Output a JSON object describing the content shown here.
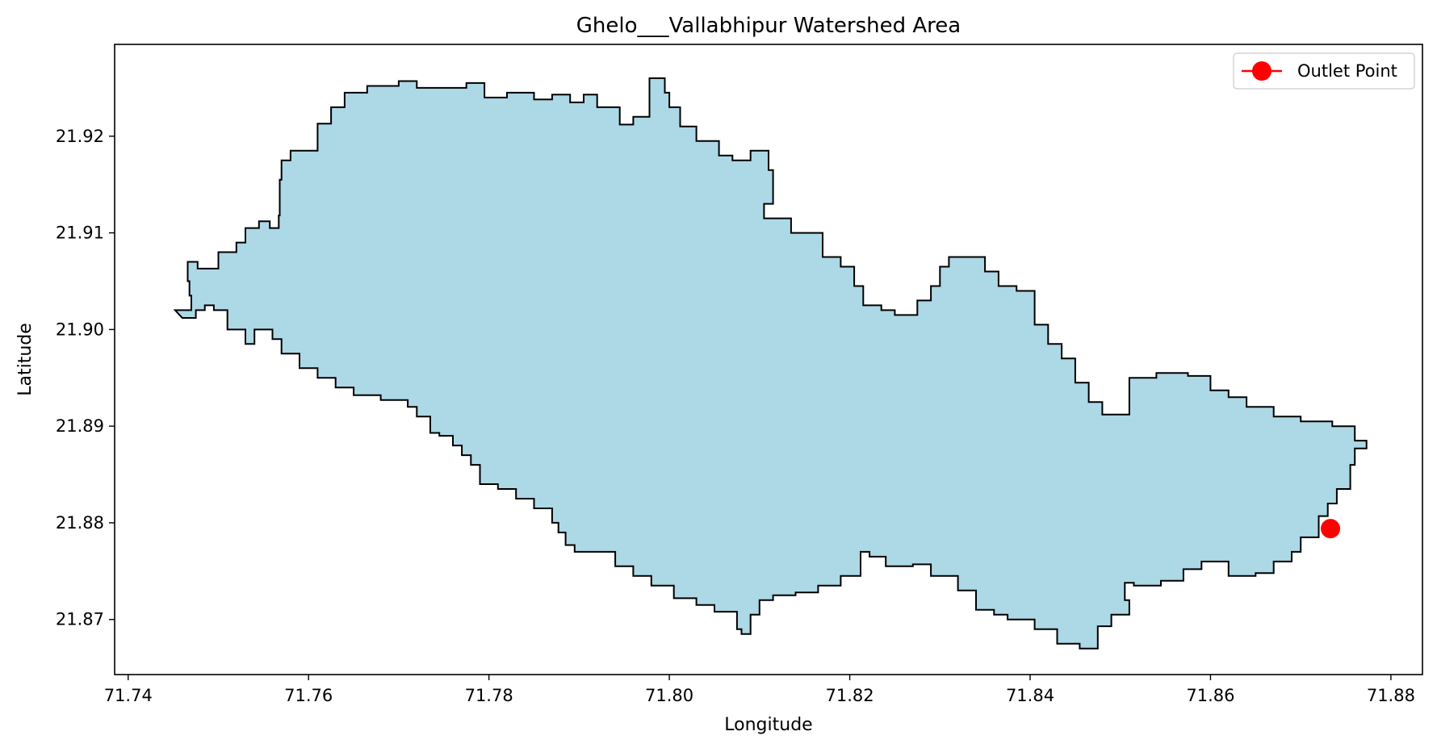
{
  "chart_data": {
    "type": "area",
    "title": "Ghelo___Vallabhipur Watershed Area",
    "xlabel": "Longitude",
    "ylabel": "Latitude",
    "xlim": [
      71.7385,
      71.8835
    ],
    "ylim": [
      21.8643,
      21.9295
    ],
    "x_ticks": [
      "71.74",
      "71.76",
      "71.78",
      "71.80",
      "71.82",
      "71.84",
      "71.86",
      "71.88"
    ],
    "y_ticks": [
      "21.87",
      "21.88",
      "21.89",
      "21.90",
      "21.91",
      "21.92"
    ],
    "grid": false,
    "legend_position": "top-right",
    "series": [
      {
        "kind": "polygon",
        "fill_color": "#add8e6",
        "edge_color": "#000000",
        "points": [
          [
            71.7452,
            21.902
          ],
          [
            71.747,
            21.9035
          ],
          [
            71.7468,
            21.905
          ],
          [
            71.7466,
            21.907
          ],
          [
            71.7475,
            21.907
          ],
          [
            71.7477,
            21.9063
          ],
          [
            71.75,
            21.9063
          ],
          [
            71.75,
            21.908
          ],
          [
            71.751,
            21.908
          ],
          [
            71.752,
            21.909
          ],
          [
            71.753,
            21.9105
          ],
          [
            71.7545,
            21.9112
          ],
          [
            71.7557,
            21.9105
          ],
          [
            71.7567,
            21.9118
          ],
          [
            71.7568,
            21.9155
          ],
          [
            71.757,
            21.9175
          ],
          [
            71.758,
            21.9185
          ],
          [
            71.7597,
            21.9185
          ],
          [
            71.761,
            21.9213
          ],
          [
            71.7625,
            21.923
          ],
          [
            71.764,
            21.9245
          ],
          [
            71.7665,
            21.9252
          ],
          [
            71.77,
            21.9257
          ],
          [
            71.772,
            21.925
          ],
          [
            71.776,
            21.925
          ],
          [
            71.7775,
            21.9255
          ],
          [
            71.7795,
            21.924
          ],
          [
            71.782,
            21.9245
          ],
          [
            71.785,
            21.9238
          ],
          [
            71.787,
            21.9243
          ],
          [
            71.789,
            21.9235
          ],
          [
            71.7905,
            21.9243
          ],
          [
            71.792,
            21.923
          ],
          [
            71.7945,
            21.9212
          ],
          [
            71.796,
            21.922
          ],
          [
            71.7978,
            21.926
          ],
          [
            71.7995,
            21.9245
          ],
          [
            71.8,
            21.923
          ],
          [
            71.8012,
            21.921
          ],
          [
            71.803,
            21.9195
          ],
          [
            71.8055,
            21.918
          ],
          [
            71.807,
            21.9175
          ],
          [
            71.809,
            21.9185
          ],
          [
            71.811,
            21.9165
          ],
          [
            71.8115,
            21.913
          ],
          [
            71.8105,
            21.9115
          ],
          [
            71.8135,
            21.91
          ],
          [
            71.816,
            21.91
          ],
          [
            71.817,
            21.9075
          ],
          [
            71.819,
            21.9065
          ],
          [
            71.8205,
            21.9045
          ],
          [
            71.8215,
            21.9025
          ],
          [
            71.8235,
            21.902
          ],
          [
            71.825,
            21.9015
          ],
          [
            71.8275,
            21.903
          ],
          [
            71.829,
            21.9045
          ],
          [
            71.83,
            21.9065
          ],
          [
            71.831,
            21.9075
          ],
          [
            71.834,
            21.9075
          ],
          [
            71.835,
            21.906
          ],
          [
            71.8365,
            21.9045
          ],
          [
            71.8385,
            21.904
          ],
          [
            71.8405,
            21.903
          ],
          [
            71.8405,
            21.9005
          ],
          [
            71.842,
            21.8985
          ],
          [
            71.8435,
            21.897
          ],
          [
            71.845,
            21.8945
          ],
          [
            71.8465,
            21.8925
          ],
          [
            71.848,
            21.8912
          ],
          [
            71.85,
            21.8912
          ],
          [
            71.851,
            21.895
          ],
          [
            71.854,
            21.8955
          ],
          [
            71.8575,
            21.8952
          ],
          [
            71.86,
            21.8937
          ],
          [
            71.862,
            21.893
          ],
          [
            71.864,
            21.892
          ],
          [
            71.867,
            21.891
          ],
          [
            71.87,
            21.8905
          ],
          [
            71.8735,
            21.89
          ],
          [
            71.876,
            21.8885
          ],
          [
            71.8773,
            21.8877
          ],
          [
            71.876,
            21.886
          ],
          [
            71.8755,
            21.8835
          ],
          [
            71.874,
            21.882
          ],
          [
            71.873,
            21.8807
          ],
          [
            71.872,
            21.8785
          ],
          [
            71.87,
            21.877
          ],
          [
            71.869,
            21.876
          ],
          [
            71.867,
            21.8748
          ],
          [
            71.865,
            21.8745
          ],
          [
            71.862,
            21.876
          ],
          [
            71.859,
            21.8752
          ],
          [
            71.857,
            21.874
          ],
          [
            71.8545,
            21.8735
          ],
          [
            71.8515,
            21.8738
          ],
          [
            71.8505,
            21.872
          ],
          [
            71.851,
            21.8705
          ],
          [
            71.849,
            21.8693
          ],
          [
            71.8475,
            21.867
          ],
          [
            71.8455,
            21.8675
          ],
          [
            71.843,
            21.869
          ],
          [
            71.8405,
            21.87
          ],
          [
            71.8375,
            21.8705
          ],
          [
            71.836,
            21.871
          ],
          [
            71.834,
            21.873
          ],
          [
            71.832,
            21.8745
          ],
          [
            71.829,
            21.8757
          ],
          [
            71.827,
            21.8755
          ],
          [
            71.824,
            21.8765
          ],
          [
            71.8222,
            21.877
          ],
          [
            71.8212,
            21.8745
          ],
          [
            71.819,
            21.8735
          ],
          [
            71.8165,
            21.8728
          ],
          [
            71.814,
            21.8725
          ],
          [
            71.8115,
            21.872
          ],
          [
            71.81,
            21.8705
          ],
          [
            71.809,
            21.8685
          ],
          [
            71.808,
            21.869
          ],
          [
            71.8075,
            21.8708
          ],
          [
            71.805,
            21.8715
          ],
          [
            71.803,
            21.8722
          ],
          [
            71.8005,
            21.8735
          ],
          [
            71.798,
            21.8745
          ],
          [
            71.796,
            21.8755
          ],
          [
            71.794,
            21.877
          ],
          [
            71.791,
            21.877
          ],
          [
            71.7895,
            21.8777
          ],
          [
            71.7885,
            21.879
          ],
          [
            71.7877,
            21.88
          ],
          [
            71.787,
            21.8815
          ],
          [
            71.785,
            21.8825
          ],
          [
            71.783,
            21.8835
          ],
          [
            71.781,
            21.884
          ],
          [
            71.779,
            21.886
          ],
          [
            71.778,
            21.887
          ],
          [
            71.777,
            21.888
          ],
          [
            71.776,
            21.889
          ],
          [
            71.7745,
            21.8893
          ],
          [
            71.7735,
            21.891
          ],
          [
            71.772,
            21.892
          ],
          [
            71.771,
            21.8927
          ],
          [
            71.768,
            21.8932
          ],
          [
            71.765,
            21.894
          ],
          [
            71.763,
            21.895
          ],
          [
            71.761,
            21.896
          ],
          [
            71.759,
            21.8975
          ],
          [
            71.757,
            21.899
          ],
          [
            71.756,
            21.9
          ],
          [
            71.754,
            21.8985
          ],
          [
            71.753,
            21.9
          ],
          [
            71.751,
            21.902
          ],
          [
            71.7495,
            21.9025
          ],
          [
            71.7485,
            21.902
          ],
          [
            71.7475,
            21.9012
          ],
          [
            71.746,
            21.9012
          ]
        ]
      },
      {
        "name": "Outlet Point",
        "kind": "point",
        "color": "#ff0000",
        "points": [
          [
            71.8733,
            21.8794
          ]
        ]
      }
    ]
  }
}
